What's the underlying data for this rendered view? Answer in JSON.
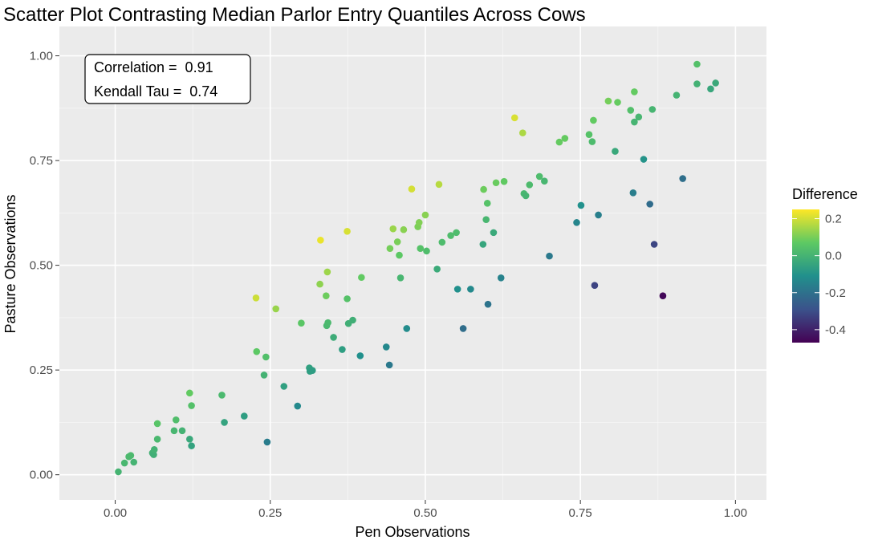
{
  "chart_data": {
    "type": "scatter",
    "title": "Scatter Plot Contrasting Median Parlor Entry Quantiles Across Cows",
    "xlabel": "Pen Observations",
    "ylabel": "Pasture Observations",
    "xlim": [
      -0.09,
      1.05
    ],
    "ylim": [
      -0.06,
      1.07
    ],
    "x_ticks": [
      0,
      0.25,
      0.5,
      0.75,
      1.0
    ],
    "x_tick_labels": [
      "0.00",
      "0.25",
      "0.50",
      "0.75",
      "1.00"
    ],
    "y_ticks": [
      0,
      0.25,
      0.5,
      0.75,
      1.0
    ],
    "y_tick_labels": [
      "0.00",
      "0.25",
      "0.50",
      "0.75",
      "1.00"
    ],
    "grid": true,
    "annotation": {
      "line1": "Correlation =  0.91",
      "line2": "Kendall Tau =  0.74"
    },
    "legend": {
      "title": "Difference",
      "position": "right",
      "ticks": [
        0.2,
        0.0,
        -0.2,
        -0.4
      ],
      "tick_labels": [
        "0.2",
        "0.0",
        "-0.2",
        "-0.4"
      ],
      "range": [
        -0.47,
        0.25
      ],
      "palette": [
        "#440154",
        "#3b528b",
        "#21908c",
        "#5dc963",
        "#fde725"
      ]
    },
    "points": [
      {
        "x": 0.005,
        "y": 0.007
      },
      {
        "x": 0.015,
        "y": 0.028
      },
      {
        "x": 0.022,
        "y": 0.043
      },
      {
        "x": 0.025,
        "y": 0.046
      },
      {
        "x": 0.03,
        "y": 0.03
      },
      {
        "x": 0.06,
        "y": 0.052
      },
      {
        "x": 0.062,
        "y": 0.048
      },
      {
        "x": 0.063,
        "y": 0.06
      },
      {
        "x": 0.068,
        "y": 0.085
      },
      {
        "x": 0.068,
        "y": 0.122
      },
      {
        "x": 0.095,
        "y": 0.105
      },
      {
        "x": 0.098,
        "y": 0.131
      },
      {
        "x": 0.108,
        "y": 0.105
      },
      {
        "x": 0.12,
        "y": 0.195
      },
      {
        "x": 0.12,
        "y": 0.085
      },
      {
        "x": 0.123,
        "y": 0.069
      },
      {
        "x": 0.123,
        "y": 0.165
      },
      {
        "x": 0.172,
        "y": 0.19
      },
      {
        "x": 0.176,
        "y": 0.125
      },
      {
        "x": 0.208,
        "y": 0.14
      },
      {
        "x": 0.227,
        "y": 0.422
      },
      {
        "x": 0.228,
        "y": 0.294
      },
      {
        "x": 0.24,
        "y": 0.238
      },
      {
        "x": 0.243,
        "y": 0.281
      },
      {
        "x": 0.245,
        "y": 0.078
      },
      {
        "x": 0.259,
        "y": 0.396
      },
      {
        "x": 0.272,
        "y": 0.211
      },
      {
        "x": 0.294,
        "y": 0.164
      },
      {
        "x": 0.3,
        "y": 0.362
      },
      {
        "x": 0.313,
        "y": 0.255
      },
      {
        "x": 0.314,
        "y": 0.247
      },
      {
        "x": 0.318,
        "y": 0.249
      },
      {
        "x": 0.33,
        "y": 0.455
      },
      {
        "x": 0.331,
        "y": 0.56
      },
      {
        "x": 0.34,
        "y": 0.427
      },
      {
        "x": 0.341,
        "y": 0.356
      },
      {
        "x": 0.342,
        "y": 0.484
      },
      {
        "x": 0.343,
        "y": 0.363
      },
      {
        "x": 0.352,
        "y": 0.328
      },
      {
        "x": 0.366,
        "y": 0.299
      },
      {
        "x": 0.374,
        "y": 0.581
      },
      {
        "x": 0.374,
        "y": 0.42
      },
      {
        "x": 0.376,
        "y": 0.361
      },
      {
        "x": 0.383,
        "y": 0.369
      },
      {
        "x": 0.395,
        "y": 0.284
      },
      {
        "x": 0.397,
        "y": 0.471
      },
      {
        "x": 0.437,
        "y": 0.305
      },
      {
        "x": 0.442,
        "y": 0.262
      },
      {
        "x": 0.443,
        "y": 0.54
      },
      {
        "x": 0.448,
        "y": 0.587
      },
      {
        "x": 0.455,
        "y": 0.556
      },
      {
        "x": 0.458,
        "y": 0.524
      },
      {
        "x": 0.46,
        "y": 0.47
      },
      {
        "x": 0.465,
        "y": 0.585
      },
      {
        "x": 0.47,
        "y": 0.349
      },
      {
        "x": 0.478,
        "y": 0.682
      },
      {
        "x": 0.488,
        "y": 0.592
      },
      {
        "x": 0.49,
        "y": 0.602
      },
      {
        "x": 0.492,
        "y": 0.54
      },
      {
        "x": 0.5,
        "y": 0.62
      },
      {
        "x": 0.502,
        "y": 0.534
      },
      {
        "x": 0.519,
        "y": 0.491
      },
      {
        "x": 0.522,
        "y": 0.693
      },
      {
        "x": 0.527,
        "y": 0.555
      },
      {
        "x": 0.541,
        "y": 0.571
      },
      {
        "x": 0.55,
        "y": 0.578
      },
      {
        "x": 0.552,
        "y": 0.443
      },
      {
        "x": 0.561,
        "y": 0.349
      },
      {
        "x": 0.573,
        "y": 0.443
      },
      {
        "x": 0.593,
        "y": 0.55
      },
      {
        "x": 0.594,
        "y": 0.681
      },
      {
        "x": 0.598,
        "y": 0.609
      },
      {
        "x": 0.6,
        "y": 0.648
      },
      {
        "x": 0.601,
        "y": 0.407
      },
      {
        "x": 0.61,
        "y": 0.578
      },
      {
        "x": 0.614,
        "y": 0.697
      },
      {
        "x": 0.622,
        "y": 0.47
      },
      {
        "x": 0.627,
        "y": 0.7
      },
      {
        "x": 0.644,
        "y": 0.852
      },
      {
        "x": 0.657,
        "y": 0.816
      },
      {
        "x": 0.659,
        "y": 0.671
      },
      {
        "x": 0.662,
        "y": 0.666
      },
      {
        "x": 0.668,
        "y": 0.692
      },
      {
        "x": 0.684,
        "y": 0.712
      },
      {
        "x": 0.692,
        "y": 0.701
      },
      {
        "x": 0.7,
        "y": 0.522
      },
      {
        "x": 0.716,
        "y": 0.794
      },
      {
        "x": 0.725,
        "y": 0.803
      },
      {
        "x": 0.744,
        "y": 0.602
      },
      {
        "x": 0.751,
        "y": 0.643
      },
      {
        "x": 0.764,
        "y": 0.812
      },
      {
        "x": 0.769,
        "y": 0.795
      },
      {
        "x": 0.771,
        "y": 0.846
      },
      {
        "x": 0.773,
        "y": 0.452
      },
      {
        "x": 0.779,
        "y": 0.62
      },
      {
        "x": 0.795,
        "y": 0.892
      },
      {
        "x": 0.806,
        "y": 0.772
      },
      {
        "x": 0.81,
        "y": 0.889
      },
      {
        "x": 0.831,
        "y": 0.87
      },
      {
        "x": 0.835,
        "y": 0.673
      },
      {
        "x": 0.837,
        "y": 0.914
      },
      {
        "x": 0.837,
        "y": 0.842
      },
      {
        "x": 0.844,
        "y": 0.854
      },
      {
        "x": 0.852,
        "y": 0.753
      },
      {
        "x": 0.862,
        "y": 0.646
      },
      {
        "x": 0.866,
        "y": 0.872
      },
      {
        "x": 0.869,
        "y": 0.55
      },
      {
        "x": 0.883,
        "y": 0.427
      },
      {
        "x": 0.905,
        "y": 0.906
      },
      {
        "x": 0.915,
        "y": 0.707
      },
      {
        "x": 0.938,
        "y": 0.98
      },
      {
        "x": 0.938,
        "y": 0.933
      },
      {
        "x": 0.96,
        "y": 0.921
      },
      {
        "x": 0.968,
        "y": 0.935
      }
    ]
  }
}
